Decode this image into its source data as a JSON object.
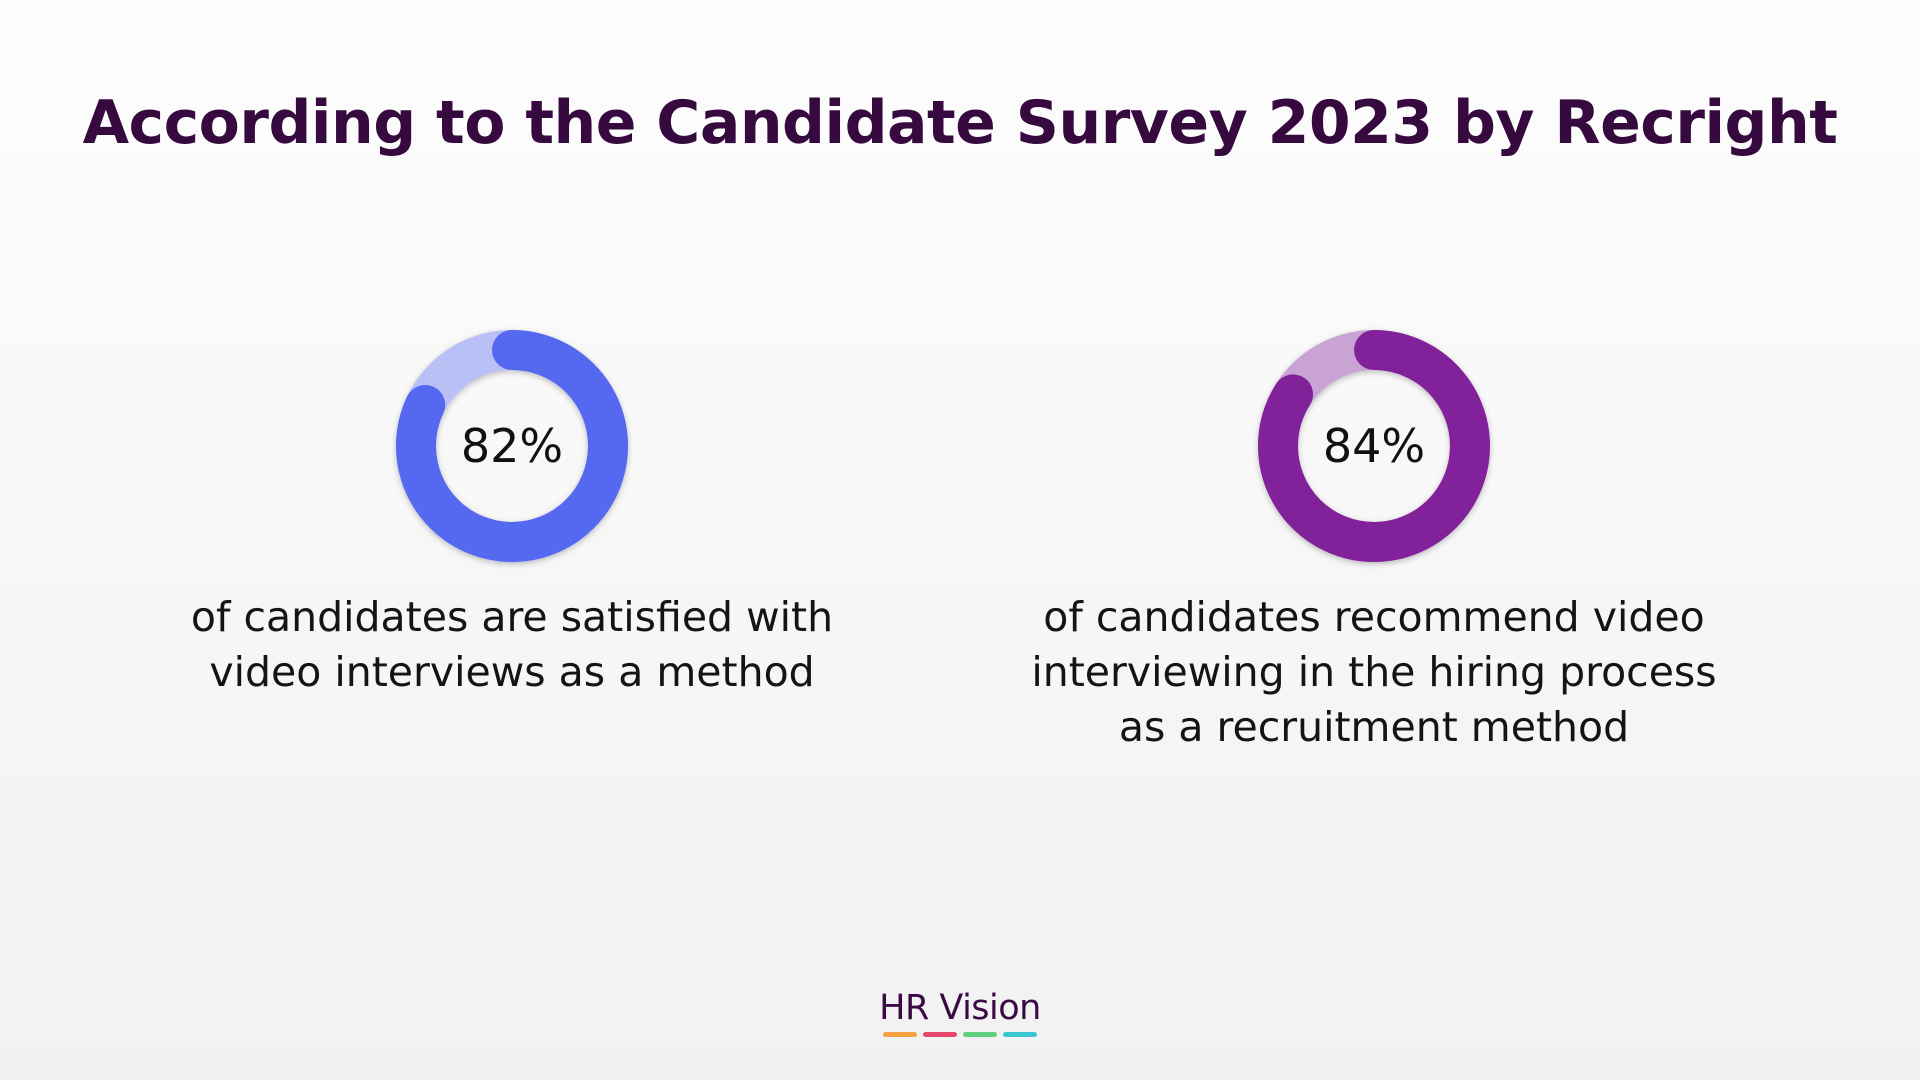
{
  "title": "According to the Candidate Survey 2023 by Recright",
  "chart_data": [
    {
      "type": "pie",
      "label": "82%",
      "value": 82,
      "color": "#5468f0",
      "track_color": "#b9c0f6",
      "description": [
        "of candidates are satisfied with",
        "video interviews as a method"
      ]
    },
    {
      "type": "pie",
      "label": "84%",
      "value": 84,
      "color": "#82229a",
      "track_color": "#c9a3d3",
      "description": [
        "of candidates recommend video",
        "interviewing in the hiring process",
        "as a recruitment method"
      ]
    }
  ],
  "brand": {
    "name": "HR Vision",
    "bar_colors": [
      "#f5a142",
      "#e5486b",
      "#5fd07b",
      "#3bc6d3"
    ]
  }
}
